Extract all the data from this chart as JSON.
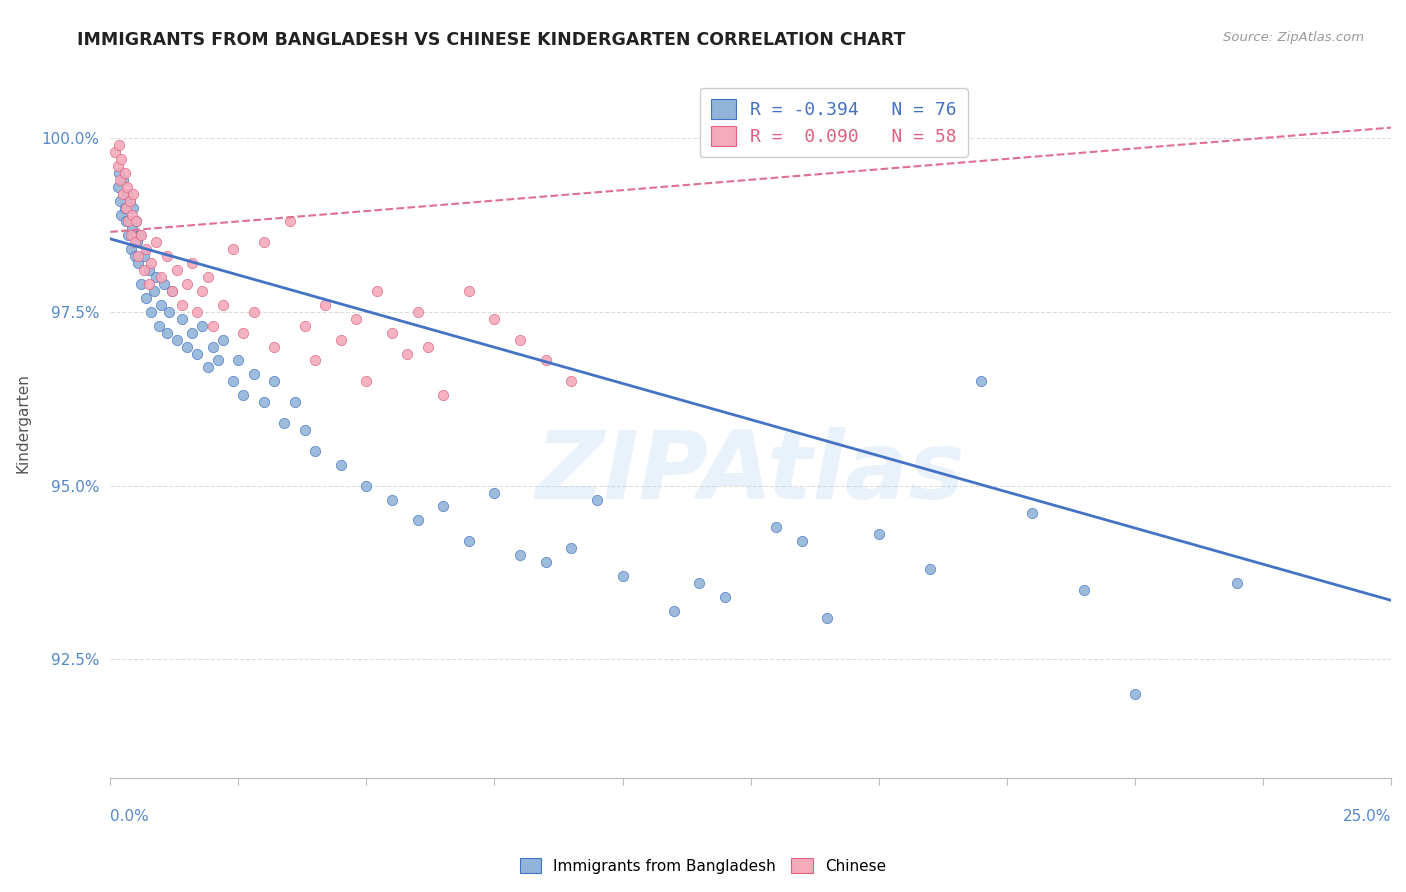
{
  "title": "IMMIGRANTS FROM BANGLADESH VS CHINESE KINDERGARTEN CORRELATION CHART",
  "source": "Source: ZipAtlas.com",
  "ylabel": "Kindergarten",
  "xlim": [
    0.0,
    25.0
  ],
  "ylim": [
    90.8,
    101.0
  ],
  "ytick_positions": [
    92.5,
    95.0,
    97.5,
    100.0
  ],
  "ytick_labels": [
    "92.5%",
    "95.0%",
    "97.5%",
    "100.0%"
  ],
  "legend_line1": "R = -0.394   N = 76",
  "legend_line2": "R =  0.090   N = 58",
  "blue_color": "#92B4D8",
  "blue_edge_color": "#4472C4",
  "pink_color": "#F4AABB",
  "pink_edge_color": "#E06080",
  "blue_line_color": "#4472C4",
  "pink_line_color": "#E07090",
  "blue_line_x": [
    0.0,
    25.0
  ],
  "blue_line_y": [
    98.55,
    93.35
  ],
  "pink_line_x": [
    0.0,
    25.0
  ],
  "pink_line_y": [
    98.65,
    100.15
  ],
  "blue_x": [
    0.15,
    0.18,
    0.2,
    0.22,
    0.25,
    0.28,
    0.3,
    0.32,
    0.35,
    0.38,
    0.4,
    0.42,
    0.45,
    0.48,
    0.5,
    0.52,
    0.55,
    0.58,
    0.6,
    0.65,
    0.7,
    0.75,
    0.8,
    0.85,
    0.9,
    0.95,
    1.0,
    1.05,
    1.1,
    1.15,
    1.2,
    1.3,
    1.4,
    1.5,
    1.6,
    1.7,
    1.8,
    1.9,
    2.0,
    2.1,
    2.2,
    2.4,
    2.5,
    2.6,
    2.8,
    3.0,
    3.2,
    3.4,
    3.6,
    3.8,
    4.0,
    4.5,
    5.0,
    5.5,
    6.0,
    7.0,
    8.0,
    10.0,
    12.0,
    14.0,
    16.0,
    18.0,
    20.0,
    22.0,
    15.0,
    17.0,
    19.0,
    9.0,
    11.0,
    13.0,
    6.5,
    7.5,
    8.5,
    9.5,
    11.5,
    13.5
  ],
  "blue_y": [
    99.3,
    99.5,
    99.1,
    98.9,
    99.4,
    99.0,
    98.8,
    99.2,
    98.6,
    99.1,
    98.4,
    98.7,
    99.0,
    98.3,
    98.8,
    98.5,
    98.2,
    98.6,
    97.9,
    98.3,
    97.7,
    98.1,
    97.5,
    97.8,
    98.0,
    97.3,
    97.6,
    97.9,
    97.2,
    97.5,
    97.8,
    97.1,
    97.4,
    97.0,
    97.2,
    96.9,
    97.3,
    96.7,
    97.0,
    96.8,
    97.1,
    96.5,
    96.8,
    96.3,
    96.6,
    96.2,
    96.5,
    95.9,
    96.2,
    95.8,
    95.5,
    95.3,
    95.0,
    94.8,
    94.5,
    94.2,
    94.0,
    93.7,
    93.4,
    93.1,
    93.8,
    94.6,
    92.0,
    93.6,
    94.3,
    96.5,
    93.5,
    94.1,
    93.2,
    94.4,
    94.7,
    94.9,
    93.9,
    94.8,
    93.6,
    94.2
  ],
  "pink_x": [
    0.1,
    0.15,
    0.18,
    0.2,
    0.22,
    0.25,
    0.28,
    0.3,
    0.32,
    0.35,
    0.38,
    0.4,
    0.42,
    0.45,
    0.48,
    0.5,
    0.55,
    0.6,
    0.65,
    0.7,
    0.75,
    0.8,
    0.9,
    1.0,
    1.1,
    1.2,
    1.3,
    1.4,
    1.5,
    1.6,
    1.7,
    1.8,
    1.9,
    2.0,
    2.2,
    2.4,
    2.6,
    2.8,
    3.0,
    3.2,
    3.5,
    3.8,
    4.0,
    4.2,
    4.5,
    4.8,
    5.0,
    5.2,
    5.5,
    5.8,
    6.0,
    6.2,
    6.5,
    7.0,
    7.5,
    8.0,
    8.5,
    9.0
  ],
  "pink_y": [
    99.8,
    99.6,
    99.9,
    99.4,
    99.7,
    99.2,
    99.5,
    99.0,
    99.3,
    98.8,
    99.1,
    98.6,
    98.9,
    99.2,
    98.5,
    98.8,
    98.3,
    98.6,
    98.1,
    98.4,
    97.9,
    98.2,
    98.5,
    98.0,
    98.3,
    97.8,
    98.1,
    97.6,
    97.9,
    98.2,
    97.5,
    97.8,
    98.0,
    97.3,
    97.6,
    98.4,
    97.2,
    97.5,
    98.5,
    97.0,
    98.8,
    97.3,
    96.8,
    97.6,
    97.1,
    97.4,
    96.5,
    97.8,
    97.2,
    96.9,
    97.5,
    97.0,
    96.3,
    97.8,
    97.4,
    97.1,
    96.8,
    96.5
  ],
  "watermark": "ZIPAtlas",
  "grid_color": "#DDDDDD",
  "bottom_legend_labels": [
    "Immigrants from Bangladesh",
    "Chinese"
  ]
}
